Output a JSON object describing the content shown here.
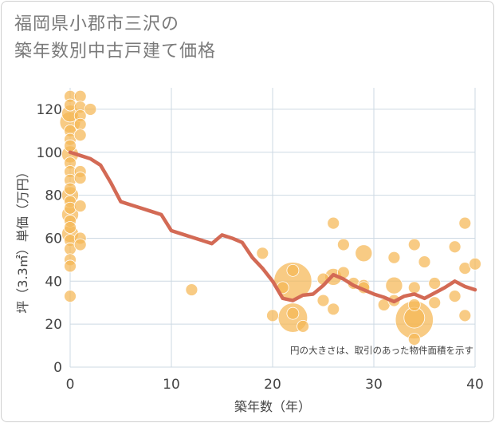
{
  "title": {
    "line1": "福岡県小郡市三沢の",
    "line2": "築年数別中古戸建て価格"
  },
  "chart_data": {
    "type": "scatter",
    "title": "福岡県小郡市三沢の 築年数別中古戸建て価格",
    "xlabel": "築年数（年）",
    "ylabel": "坪（3.3㎡）単価（万円）",
    "xlim": [
      0,
      40
    ],
    "ylim": [
      0,
      130
    ],
    "x_ticks": [
      0,
      10,
      20,
      30,
      40
    ],
    "y_ticks": [
      0,
      20,
      40,
      60,
      80,
      100,
      120
    ],
    "grid": true,
    "note": "円の大きさは、取引のあった物件面積を示す",
    "colors": {
      "bubble": "#f5b755",
      "line": "#d36a55",
      "grid": "#cdd9e3"
    },
    "bubbles": [
      {
        "x": 0,
        "y": 126,
        "size": 1
      },
      {
        "x": 0,
        "y": 122,
        "size": 1
      },
      {
        "x": 0,
        "y": 118,
        "size": 2
      },
      {
        "x": 0,
        "y": 114,
        "size": 3
      },
      {
        "x": 0,
        "y": 110,
        "size": 1
      },
      {
        "x": 0,
        "y": 106,
        "size": 1
      },
      {
        "x": 0,
        "y": 103,
        "size": 1
      },
      {
        "x": 0,
        "y": 99,
        "size": 2
      },
      {
        "x": 0,
        "y": 95,
        "size": 1
      },
      {
        "x": 0,
        "y": 91,
        "size": 1
      },
      {
        "x": 0,
        "y": 87,
        "size": 1
      },
      {
        "x": 0,
        "y": 83,
        "size": 1
      },
      {
        "x": 0,
        "y": 80,
        "size": 2
      },
      {
        "x": 0,
        "y": 77,
        "size": 1
      },
      {
        "x": 0,
        "y": 74,
        "size": 1
      },
      {
        "x": 0,
        "y": 71,
        "size": 2
      },
      {
        "x": 0,
        "y": 68,
        "size": 1
      },
      {
        "x": 0,
        "y": 65,
        "size": 1
      },
      {
        "x": 0,
        "y": 62,
        "size": 2
      },
      {
        "x": 0,
        "y": 59,
        "size": 1
      },
      {
        "x": 0,
        "y": 55,
        "size": 1
      },
      {
        "x": 0,
        "y": 50,
        "size": 1
      },
      {
        "x": 0,
        "y": 47,
        "size": 1
      },
      {
        "x": 0,
        "y": 33,
        "size": 1
      },
      {
        "x": 1,
        "y": 126,
        "size": 1
      },
      {
        "x": 1,
        "y": 121,
        "size": 1
      },
      {
        "x": 1,
        "y": 117,
        "size": 1
      },
      {
        "x": 1,
        "y": 113,
        "size": 1
      },
      {
        "x": 1,
        "y": 108,
        "size": 1
      },
      {
        "x": 1,
        "y": 91,
        "size": 1
      },
      {
        "x": 1,
        "y": 88,
        "size": 1
      },
      {
        "x": 1,
        "y": 75,
        "size": 1
      },
      {
        "x": 1,
        "y": 60,
        "size": 1
      },
      {
        "x": 1,
        "y": 57,
        "size": 1
      },
      {
        "x": 2,
        "y": 120,
        "size": 1
      },
      {
        "x": 12,
        "y": 36,
        "size": 1
      },
      {
        "x": 19,
        "y": 53,
        "size": 1
      },
      {
        "x": 20,
        "y": 24,
        "size": 1
      },
      {
        "x": 21,
        "y": 37,
        "size": 1
      },
      {
        "x": 22,
        "y": 40,
        "size": 10
      },
      {
        "x": 22,
        "y": 23,
        "size": 6
      },
      {
        "x": 22,
        "y": 45,
        "size": 1
      },
      {
        "x": 22,
        "y": 25,
        "size": 1
      },
      {
        "x": 23,
        "y": 19,
        "size": 1
      },
      {
        "x": 25,
        "y": 31,
        "size": 1
      },
      {
        "x": 25,
        "y": 41,
        "size": 1
      },
      {
        "x": 26,
        "y": 67,
        "size": 1
      },
      {
        "x": 26,
        "y": 42,
        "size": 2
      },
      {
        "x": 26,
        "y": 27,
        "size": 1
      },
      {
        "x": 27,
        "y": 57,
        "size": 1
      },
      {
        "x": 27,
        "y": 44,
        "size": 1
      },
      {
        "x": 28,
        "y": 39,
        "size": 1
      },
      {
        "x": 29,
        "y": 53,
        "size": 2
      },
      {
        "x": 29,
        "y": 38,
        "size": 1
      },
      {
        "x": 29,
        "y": 37,
        "size": 1
      },
      {
        "x": 31,
        "y": 29,
        "size": 1
      },
      {
        "x": 32,
        "y": 51,
        "size": 1
      },
      {
        "x": 32,
        "y": 38,
        "size": 2
      },
      {
        "x": 32,
        "y": 31,
        "size": 1
      },
      {
        "x": 34,
        "y": 57,
        "size": 1
      },
      {
        "x": 34,
        "y": 37,
        "size": 1
      },
      {
        "x": 34,
        "y": 29,
        "size": 1
      },
      {
        "x": 34,
        "y": 23,
        "size": 3
      },
      {
        "x": 34,
        "y": 22,
        "size": 10
      },
      {
        "x": 34,
        "y": 13,
        "size": 1
      },
      {
        "x": 35,
        "y": 49,
        "size": 1
      },
      {
        "x": 36,
        "y": 39,
        "size": 1
      },
      {
        "x": 36,
        "y": 30,
        "size": 1
      },
      {
        "x": 38,
        "y": 56,
        "size": 1
      },
      {
        "x": 38,
        "y": 33,
        "size": 1
      },
      {
        "x": 39,
        "y": 67,
        "size": 1
      },
      {
        "x": 39,
        "y": 46,
        "size": 1
      },
      {
        "x": 39,
        "y": 24,
        "size": 1
      },
      {
        "x": 40,
        "y": 48,
        "size": 1
      }
    ],
    "trend_line": {
      "x": [
        0,
        1,
        2,
        3,
        4,
        5,
        6,
        7,
        8,
        9,
        10,
        11,
        12,
        13,
        14,
        15,
        16,
        17,
        18,
        19,
        20,
        21,
        22,
        23,
        24,
        25,
        26,
        27,
        28,
        29,
        30,
        31,
        32,
        33,
        34,
        35,
        36,
        37,
        38,
        39,
        40
      ],
      "y": [
        100,
        98.5,
        97,
        94,
        86,
        77,
        75.5,
        74,
        72.5,
        71,
        63.5,
        62,
        60.5,
        59,
        57.5,
        61.5,
        60,
        58,
        51,
        46,
        40,
        32,
        31,
        33.5,
        34,
        38,
        43,
        41,
        38,
        36,
        34,
        32.5,
        30.5,
        33,
        34,
        32,
        34.5,
        37,
        40,
        37.5,
        36
      ]
    }
  }
}
